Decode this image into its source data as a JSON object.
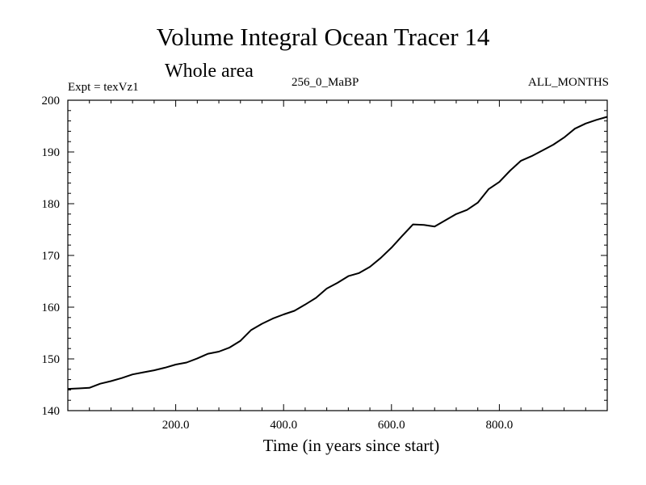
{
  "chart_data": {
    "type": "line",
    "title": "Volume Integral Ocean Tracer 14",
    "subtitle": "Whole area",
    "annotations": {
      "left": "Expt = texVz1",
      "center": "256_0_MaBP",
      "right": "ALL_MONTHS"
    },
    "xlabel": "Time (in years since start)",
    "ylabel": "",
    "xlim": [
      0,
      1000
    ],
    "ylim": [
      140,
      200
    ],
    "xticks": [
      200,
      400,
      600,
      800
    ],
    "xtick_labels": [
      "200.0",
      "400.0",
      "600.0",
      "800.0"
    ],
    "yticks": [
      140,
      150,
      160,
      170,
      180,
      190,
      200
    ],
    "ytick_labels": [
      "140",
      "150",
      "160",
      "170",
      "180",
      "190",
      "200"
    ],
    "grid": false,
    "series": [
      {
        "name": "Volume Integral Ocean Tracer 14",
        "color": "#000000",
        "x": [
          0,
          20,
          40,
          60,
          80,
          100,
          120,
          140,
          160,
          180,
          200,
          220,
          240,
          260,
          280,
          300,
          320,
          340,
          360,
          380,
          400,
          420,
          440,
          460,
          480,
          500,
          520,
          540,
          560,
          580,
          600,
          620,
          640,
          660,
          680,
          700,
          720,
          740,
          760,
          780,
          800,
          820,
          840,
          860,
          880,
          900,
          920,
          940,
          960,
          980,
          1000
        ],
        "y": [
          144.2,
          144.3,
          144.4,
          145.2,
          145.7,
          146.3,
          147.0,
          147.4,
          147.8,
          148.3,
          148.9,
          149.3,
          150.1,
          151.0,
          151.4,
          152.2,
          153.5,
          155.6,
          156.8,
          157.8,
          158.6,
          159.3,
          160.5,
          161.8,
          163.6,
          164.7,
          166.0,
          166.6,
          167.8,
          169.5,
          171.5,
          173.8,
          176.0,
          175.9,
          175.6,
          176.8,
          178.0,
          178.8,
          180.2,
          182.8,
          184.2,
          186.4,
          188.3,
          189.2,
          190.3,
          191.4,
          192.8,
          194.5,
          195.5,
          196.2,
          196.8
        ]
      }
    ]
  }
}
